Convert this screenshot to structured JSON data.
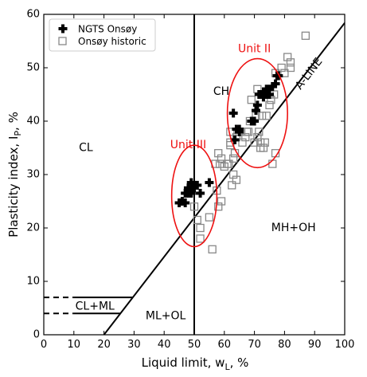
{
  "chart_data": {
    "type": "scatter",
    "xlim": [
      0,
      100
    ],
    "ylim": [
      0,
      60
    ],
    "x_ticks": [
      0,
      10,
      20,
      30,
      40,
      50,
      60,
      70,
      80,
      90,
      100
    ],
    "y_ticks": [
      0,
      10,
      20,
      30,
      40,
      50,
      60
    ],
    "xlabel": {
      "main": "Liquid limit, w",
      "sub": "L",
      "unit": ", %"
    },
    "ylabel": {
      "main": "Plasticity index, I",
      "sub": "P",
      "unit": ", %"
    },
    "grid": false,
    "legend_position": "top-left",
    "series": [
      {
        "name": "NGTS Onsøy",
        "marker": "filled-plus",
        "color": "#000000",
        "points": [
          [
            45,
            24.7
          ],
          [
            46,
            25
          ],
          [
            47,
            24.7
          ],
          [
            47,
            26.5
          ],
          [
            48,
            26.5
          ],
          [
            48,
            27.5
          ],
          [
            49,
            28.5
          ],
          [
            49,
            26.5
          ],
          [
            50,
            28
          ],
          [
            50,
            27.5
          ],
          [
            51,
            28
          ],
          [
            52,
            26.5
          ],
          [
            55,
            28.5
          ],
          [
            63,
            41.5
          ],
          [
            63.5,
            36.5
          ],
          [
            64,
            38.5
          ],
          [
            65,
            38.5
          ],
          [
            65,
            38
          ],
          [
            69,
            40
          ],
          [
            70,
            40
          ],
          [
            70.5,
            42
          ],
          [
            71,
            43
          ],
          [
            71.5,
            45
          ],
          [
            72,
            45
          ],
          [
            73,
            44.5
          ],
          [
            73,
            45.5
          ],
          [
            74,
            46
          ],
          [
            74,
            45
          ],
          [
            75,
            45
          ],
          [
            75,
            46
          ],
          [
            76,
            46.5
          ],
          [
            77,
            47
          ],
          [
            77.5,
            48.5
          ],
          [
            78,
            48.5
          ]
        ]
      },
      {
        "name": "Onsøy historic",
        "marker": "open-square",
        "color": "#888888",
        "points": [
          [
            50,
            24
          ],
          [
            51,
            21.5
          ],
          [
            52,
            18
          ],
          [
            52,
            20
          ],
          [
            55,
            22
          ],
          [
            56,
            16
          ],
          [
            57,
            32
          ],
          [
            57.5,
            27
          ],
          [
            58,
            24
          ],
          [
            58,
            34
          ],
          [
            58.5,
            32
          ],
          [
            59,
            25
          ],
          [
            59,
            33
          ],
          [
            60,
            31.5
          ],
          [
            61,
            32
          ],
          [
            61.5,
            32
          ],
          [
            62,
            38
          ],
          [
            62,
            36
          ],
          [
            62,
            35.5
          ],
          [
            62.5,
            28
          ],
          [
            63,
            30
          ],
          [
            63,
            33
          ],
          [
            63.5,
            34
          ],
          [
            64,
            29
          ],
          [
            64,
            37
          ],
          [
            65,
            38
          ],
          [
            66,
            36
          ],
          [
            67,
            37
          ],
          [
            67.5,
            38
          ],
          [
            68,
            38
          ],
          [
            68.5,
            40
          ],
          [
            69,
            44
          ],
          [
            70,
            36
          ],
          [
            70.5,
            41
          ],
          [
            71,
            37
          ],
          [
            71,
            46
          ],
          [
            71.5,
            38
          ],
          [
            72,
            35
          ],
          [
            72,
            36
          ],
          [
            72.5,
            41
          ],
          [
            73,
            35
          ],
          [
            73.5,
            36
          ],
          [
            74,
            41
          ],
          [
            75,
            43
          ],
          [
            75,
            45
          ],
          [
            75.5,
            44
          ],
          [
            76,
            32
          ],
          [
            76.5,
            45
          ],
          [
            77,
            34
          ],
          [
            77,
            49
          ],
          [
            79,
            50
          ],
          [
            80,
            49
          ],
          [
            81,
            52
          ],
          [
            82,
            50
          ],
          [
            82,
            51
          ],
          [
            87,
            56
          ]
        ]
      }
    ],
    "reference_lines": [
      {
        "name": "A-line",
        "label": "A-LINE",
        "slope": 0.73,
        "intercept_x": 20
      },
      {
        "name": "wL=50",
        "x": 50
      }
    ],
    "region_labels": [
      {
        "text": "CL",
        "x": 14,
        "y": 35
      },
      {
        "text": "CH",
        "x": 59,
        "y": 45.5
      },
      {
        "text": "MH+OH",
        "x": 83,
        "y": 20
      },
      {
        "text": "ML+OL",
        "x": 40.5,
        "y": 3.5
      },
      {
        "text": "CL+ML",
        "x": 17,
        "y": 5.3
      }
    ],
    "annotations": [
      {
        "text": "Unit III",
        "color": "#ee1111",
        "x": 48,
        "y": 35.5
      },
      {
        "text": "Unit II",
        "color": "#ee1111",
        "x": 70,
        "y": 53.5
      }
    ],
    "ellipses": [
      {
        "cx": 50,
        "cy": 26,
        "rx": 7.5,
        "ry": 9.5,
        "color": "#ee1111"
      },
      {
        "cx": 71,
        "cy": 41.5,
        "rx": 10,
        "ry": 10.2,
        "color": "#ee1111"
      }
    ]
  }
}
